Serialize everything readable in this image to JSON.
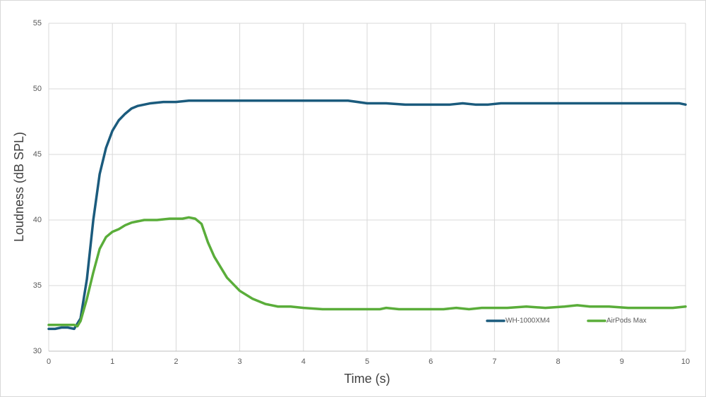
{
  "chart_data": {
    "type": "line",
    "x_label": "Time (s)",
    "y_label": "Loudness (dB SPL)",
    "xlim": [
      0,
      10
    ],
    "xticks": [
      0,
      1,
      2,
      3,
      4,
      5,
      6,
      7,
      8,
      9,
      10
    ],
    "ylim": [
      30,
      55
    ],
    "yticks": [
      30,
      35,
      40,
      45,
      50,
      55
    ],
    "grid": true,
    "legend": "lower right",
    "series": [
      {
        "name": "WH-1000XM4",
        "color": "#1b5b7d",
        "x": [
          0,
          0.1,
          0.2,
          0.3,
          0.4,
          0.5,
          0.6,
          0.7,
          0.8,
          0.9,
          1.0,
          1.1,
          1.2,
          1.3,
          1.4,
          1.5,
          1.6,
          1.8,
          2.0,
          2.2,
          2.5,
          3,
          3.5,
          4,
          4.5,
          4.7,
          5,
          5.3,
          5.6,
          6,
          6.3,
          6.5,
          6.7,
          6.9,
          7.1,
          7.5,
          8,
          8.5,
          9,
          9.5,
          9.9,
          10
        ],
        "values": [
          31.7,
          31.7,
          31.8,
          31.8,
          31.7,
          32.5,
          35.5,
          40,
          43.5,
          45.5,
          46.8,
          47.6,
          48.1,
          48.5,
          48.7,
          48.8,
          48.9,
          49.0,
          49.0,
          49.1,
          49.1,
          49.1,
          49.1,
          49.1,
          49.1,
          49.1,
          48.9,
          48.9,
          48.8,
          48.8,
          48.8,
          48.9,
          48.8,
          48.8,
          48.9,
          48.9,
          48.9,
          48.9,
          48.9,
          48.9,
          48.9,
          48.8
        ]
      },
      {
        "name": "AirPods Max",
        "color": "#5aad3a",
        "x": [
          0,
          0.3,
          0.4,
          0.45,
          0.5,
          0.6,
          0.7,
          0.8,
          0.9,
          1.0,
          1.1,
          1.2,
          1.3,
          1.5,
          1.7,
          1.9,
          2.1,
          2.2,
          2.3,
          2.4,
          2.5,
          2.6,
          2.8,
          3.0,
          3.2,
          3.4,
          3.6,
          3.8,
          4.0,
          4.3,
          5,
          5.2,
          5.3,
          5.5,
          6.2,
          6.4,
          6.6,
          6.8,
          7.2,
          7.5,
          7.8,
          8.1,
          8.3,
          8.5,
          8.8,
          9.1,
          9.5,
          9.8,
          10
        ],
        "values": [
          32,
          32,
          32,
          31.9,
          32.3,
          34,
          36,
          37.8,
          38.7,
          39.1,
          39.3,
          39.6,
          39.8,
          40.0,
          40.0,
          40.1,
          40.1,
          40.2,
          40.1,
          39.7,
          38.3,
          37.2,
          35.6,
          34.6,
          34.0,
          33.6,
          33.4,
          33.4,
          33.3,
          33.2,
          33.2,
          33.2,
          33.3,
          33.2,
          33.2,
          33.3,
          33.2,
          33.3,
          33.3,
          33.4,
          33.3,
          33.4,
          33.5,
          33.4,
          33.4,
          33.3,
          33.3,
          33.3,
          33.4
        ]
      }
    ]
  }
}
